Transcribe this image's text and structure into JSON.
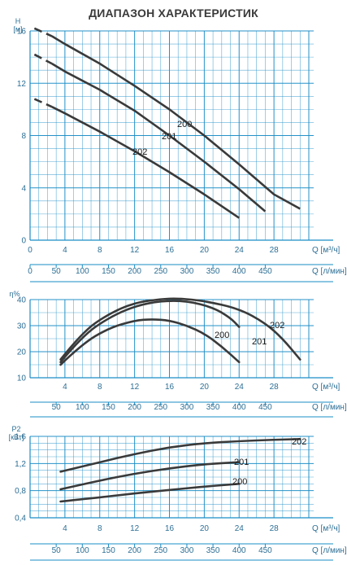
{
  "title": "ДИАПАЗОН ХАРАКТЕРИСТИК",
  "colors": {
    "grid": "#1a8dc6",
    "tick_text": "#2d6f95",
    "curve": "#3a3a3a"
  },
  "x_axes": {
    "q_unit_label": "Q [м³/ч]",
    "l_unit_label": "Q [л/мин]",
    "q_ticks": [
      "0",
      "4",
      "8",
      "12",
      "16",
      "20",
      "24",
      "28"
    ],
    "l_ticks": [
      "0",
      "50",
      "100",
      "150",
      "200",
      "250",
      "300",
      "350",
      "400",
      "450"
    ],
    "l_ticks_short": [
      "50",
      "100",
      "150",
      "200",
      "250",
      "300",
      "350",
      "400",
      "450"
    ]
  },
  "chart_data": [
    {
      "type": "line",
      "name": "head",
      "y_axis_label": "H",
      "y_unit": "[м]",
      "ylim": [
        0,
        16
      ],
      "y_ticks": [
        "16",
        "12",
        "8",
        "4",
        "0"
      ],
      "xlim": [
        0,
        32
      ],
      "grid": true,
      "series": [
        {
          "name": "200",
          "dash_to": 2.5,
          "points": [
            [
              0.5,
              10.8
            ],
            [
              2.5,
              10.2
            ],
            [
              4,
              9.7
            ],
            [
              8,
              8.3
            ],
            [
              12,
              6.8
            ],
            [
              16,
              5.2
            ],
            [
              20,
              3.5
            ],
            [
              24,
              1.7
            ]
          ]
        },
        {
          "name": "201",
          "dash_to": 2.5,
          "points": [
            [
              0.5,
              14.2
            ],
            [
              2.5,
              13.5
            ],
            [
              4,
              12.9
            ],
            [
              8,
              11.5
            ],
            [
              12,
              9.9
            ],
            [
              16,
              8.0
            ],
            [
              20,
              6.0
            ],
            [
              24,
              3.9
            ],
            [
              27,
              2.2
            ]
          ]
        },
        {
          "name": "202",
          "dash_to": 2.5,
          "points": [
            [
              0.5,
              16.2
            ],
            [
              2.5,
              15.6
            ],
            [
              4,
              15.0
            ],
            [
              8,
              13.5
            ],
            [
              12,
              11.8
            ],
            [
              16,
              10.0
            ],
            [
              20,
              8.0
            ],
            [
              24,
              5.8
            ],
            [
              28,
              3.5
            ],
            [
              31,
              2.4
            ]
          ]
        }
      ]
    },
    {
      "type": "line",
      "name": "efficiency",
      "y_axis_label": "η%",
      "ylim": [
        10,
        40
      ],
      "y_ticks": [
        "40",
        "30",
        "20",
        "10"
      ],
      "xlim": [
        0,
        32
      ],
      "grid": true,
      "series": [
        {
          "name": "200",
          "points": [
            [
              3.5,
              15
            ],
            [
              6,
              23
            ],
            [
              9,
              29
            ],
            [
              12,
              32
            ],
            [
              14,
              32.5
            ],
            [
              16,
              32
            ],
            [
              18,
              30
            ],
            [
              20,
              27
            ],
            [
              22,
              22
            ],
            [
              24,
              16
            ]
          ]
        },
        {
          "name": "201",
          "points": [
            [
              3.5,
              16
            ],
            [
              6,
              26
            ],
            [
              9,
              33
            ],
            [
              12,
              37.5
            ],
            [
              15,
              39.5
            ],
            [
              18,
              39.5
            ],
            [
              21,
              37
            ],
            [
              23,
              33
            ],
            [
              24,
              29.5
            ]
          ]
        },
        {
          "name": "202",
          "points": [
            [
              3.5,
              17
            ],
            [
              6,
              27.5
            ],
            [
              9,
              34.5
            ],
            [
              12,
              38.8
            ],
            [
              15,
              40.2
            ],
            [
              17,
              40.5
            ],
            [
              20,
              39.5
            ],
            [
              24,
              36.5
            ],
            [
              27,
              31
            ],
            [
              29,
              25
            ],
            [
              31,
              17
            ]
          ]
        }
      ]
    },
    {
      "type": "line",
      "name": "power",
      "y_axis_label": "P2",
      "y_unit": "[кВт]",
      "ylim": [
        0.4,
        1.6
      ],
      "y_ticks": [
        "1,6",
        "1,2",
        "0,8",
        "0,4"
      ],
      "xlim": [
        0,
        32
      ],
      "grid": true,
      "series": [
        {
          "name": "200",
          "points": [
            [
              3.5,
              0.64
            ],
            [
              8,
              0.7
            ],
            [
              12,
              0.76
            ],
            [
              16,
              0.81
            ],
            [
              20,
              0.86
            ],
            [
              24,
              0.9
            ]
          ]
        },
        {
          "name": "201",
          "points": [
            [
              3.5,
              0.82
            ],
            [
              8,
              0.95
            ],
            [
              12,
              1.05
            ],
            [
              16,
              1.13
            ],
            [
              20,
              1.19
            ],
            [
              24,
              1.22
            ]
          ]
        },
        {
          "name": "202",
          "points": [
            [
              3.5,
              1.08
            ],
            [
              8,
              1.22
            ],
            [
              12,
              1.34
            ],
            [
              16,
              1.44
            ],
            [
              20,
              1.5
            ],
            [
              24,
              1.53
            ],
            [
              28,
              1.55
            ],
            [
              31,
              1.56
            ]
          ]
        }
      ]
    }
  ]
}
